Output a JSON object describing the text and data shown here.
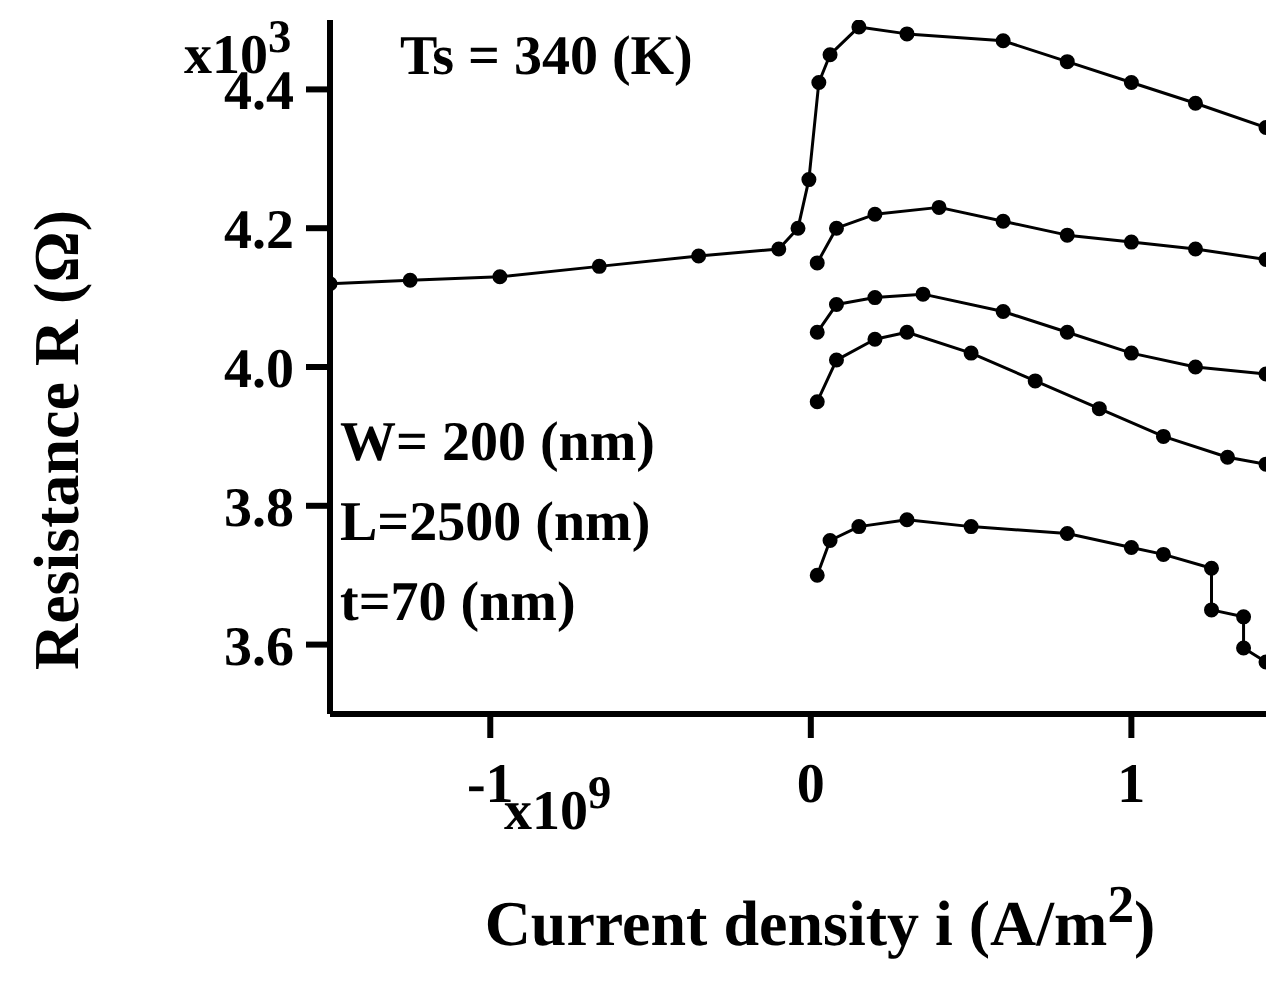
{
  "chart_data": {
    "type": "line",
    "xlabel": "Current density i (A/m$^{2}$)",
    "ylabel": "Resistance R (Ω)",
    "annotations": [
      "Ts = 340 (K)",
      "W= 200 (nm)",
      "L=2500 (nm)",
      "t=70 (nm)",
      "x10$^{9}$",
      "x10$^{3}$"
    ],
    "xlim": [
      -1.5,
      1.42
    ],
    "ylim": [
      3.5,
      4.5
    ],
    "xticks": [
      -1,
      0,
      1
    ],
    "yticks": [
      3.6,
      3.8,
      {
        "value": 4,
        "label": "4.0"
      },
      4.2,
      4.4
    ],
    "marker": "circle",
    "line_style": "solid",
    "series": [
      {
        "color": "#000000",
        "x": [
          -1.5,
          -1.25,
          -0.97,
          -0.66,
          -0.35,
          -0.1,
          -0.04,
          -0.006,
          0.025,
          0.06,
          0.15,
          0.3,
          0.6,
          0.8,
          1.0,
          1.2,
          1.42
        ],
        "values": [
          4.12,
          4.125,
          4.13,
          4.145,
          4.16,
          4.17,
          4.2,
          4.27,
          4.41,
          4.45,
          4.49,
          4.48,
          4.47,
          4.44,
          4.41,
          4.38,
          4.345
        ]
      },
      {
        "color": "#000000",
        "x": [
          0.02,
          0.08,
          0.2,
          0.4,
          0.6,
          0.8,
          1.0,
          1.2,
          1.42
        ],
        "values": [
          4.15,
          4.2,
          4.22,
          4.23,
          4.21,
          4.19,
          4.18,
          4.17,
          4.155
        ]
      },
      {
        "color": "#000000",
        "x": [
          0.02,
          0.08,
          0.2,
          0.35,
          0.6,
          0.8,
          1.0,
          1.2,
          1.42
        ],
        "values": [
          4.05,
          4.09,
          4.1,
          4.105,
          4.08,
          4.05,
          4.02,
          4.0,
          3.99
        ]
      },
      {
        "color": "#000000",
        "x": [
          0.02,
          0.08,
          0.2,
          0.3,
          0.5,
          0.7,
          0.9,
          1.1,
          1.3,
          1.42
        ],
        "values": [
          3.95,
          4.01,
          4.04,
          4.05,
          4.02,
          3.98,
          3.94,
          3.9,
          3.87,
          3.86
        ]
      },
      {
        "color": "#000000",
        "x": [
          0.02,
          0.06,
          0.15,
          0.3,
          0.5,
          0.8,
          1.0,
          1.1,
          1.25,
          1.25,
          1.35,
          1.35,
          1.42
        ],
        "values": [
          3.7,
          3.75,
          3.77,
          3.78,
          3.77,
          3.76,
          3.74,
          3.73,
          3.71,
          3.65,
          3.64,
          3.595,
          3.575
        ]
      }
    ]
  }
}
